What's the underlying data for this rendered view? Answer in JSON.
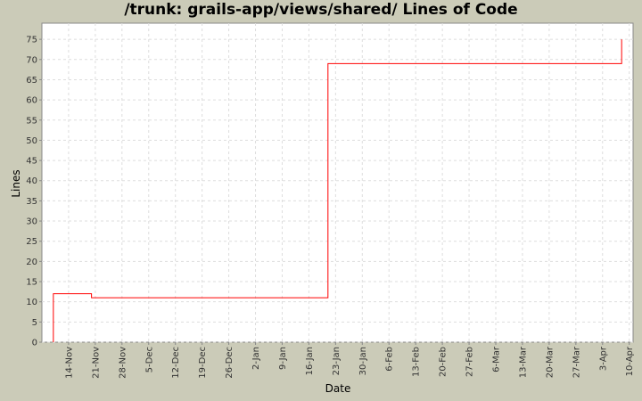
{
  "chart_data": {
    "type": "line",
    "title": "/trunk: grails-app/views/shared/ Lines of Code",
    "xlabel": "Date",
    "ylabel": "Lines",
    "step": true,
    "grid": true,
    "line_color": "#ff0000",
    "background_color": "#cbcbb8",
    "xlim": [
      "7-Nov",
      "11-Apr"
    ],
    "ylim": [
      0,
      79
    ],
    "x_ticks": [
      "14-Nov",
      "21-Nov",
      "28-Nov",
      "5-Dec",
      "12-Dec",
      "19-Dec",
      "26-Dec",
      "2-Jan",
      "9-Jan",
      "16-Jan",
      "23-Jan",
      "30-Jan",
      "6-Feb",
      "13-Feb",
      "20-Feb",
      "27-Feb",
      "6-Mar",
      "13-Mar",
      "20-Mar",
      "27-Mar",
      "3-Apr",
      "10-Apr"
    ],
    "y_ticks": [
      0,
      5,
      10,
      15,
      20,
      25,
      30,
      35,
      40,
      45,
      50,
      55,
      60,
      65,
      70,
      75
    ],
    "series": [
      {
        "points": [
          [
            "10-Nov",
            0
          ],
          [
            "10-Nov",
            12
          ],
          [
            "20-Nov",
            11
          ],
          [
            "21-Jan",
            69
          ],
          [
            "8-Apr",
            75
          ]
        ]
      }
    ]
  }
}
